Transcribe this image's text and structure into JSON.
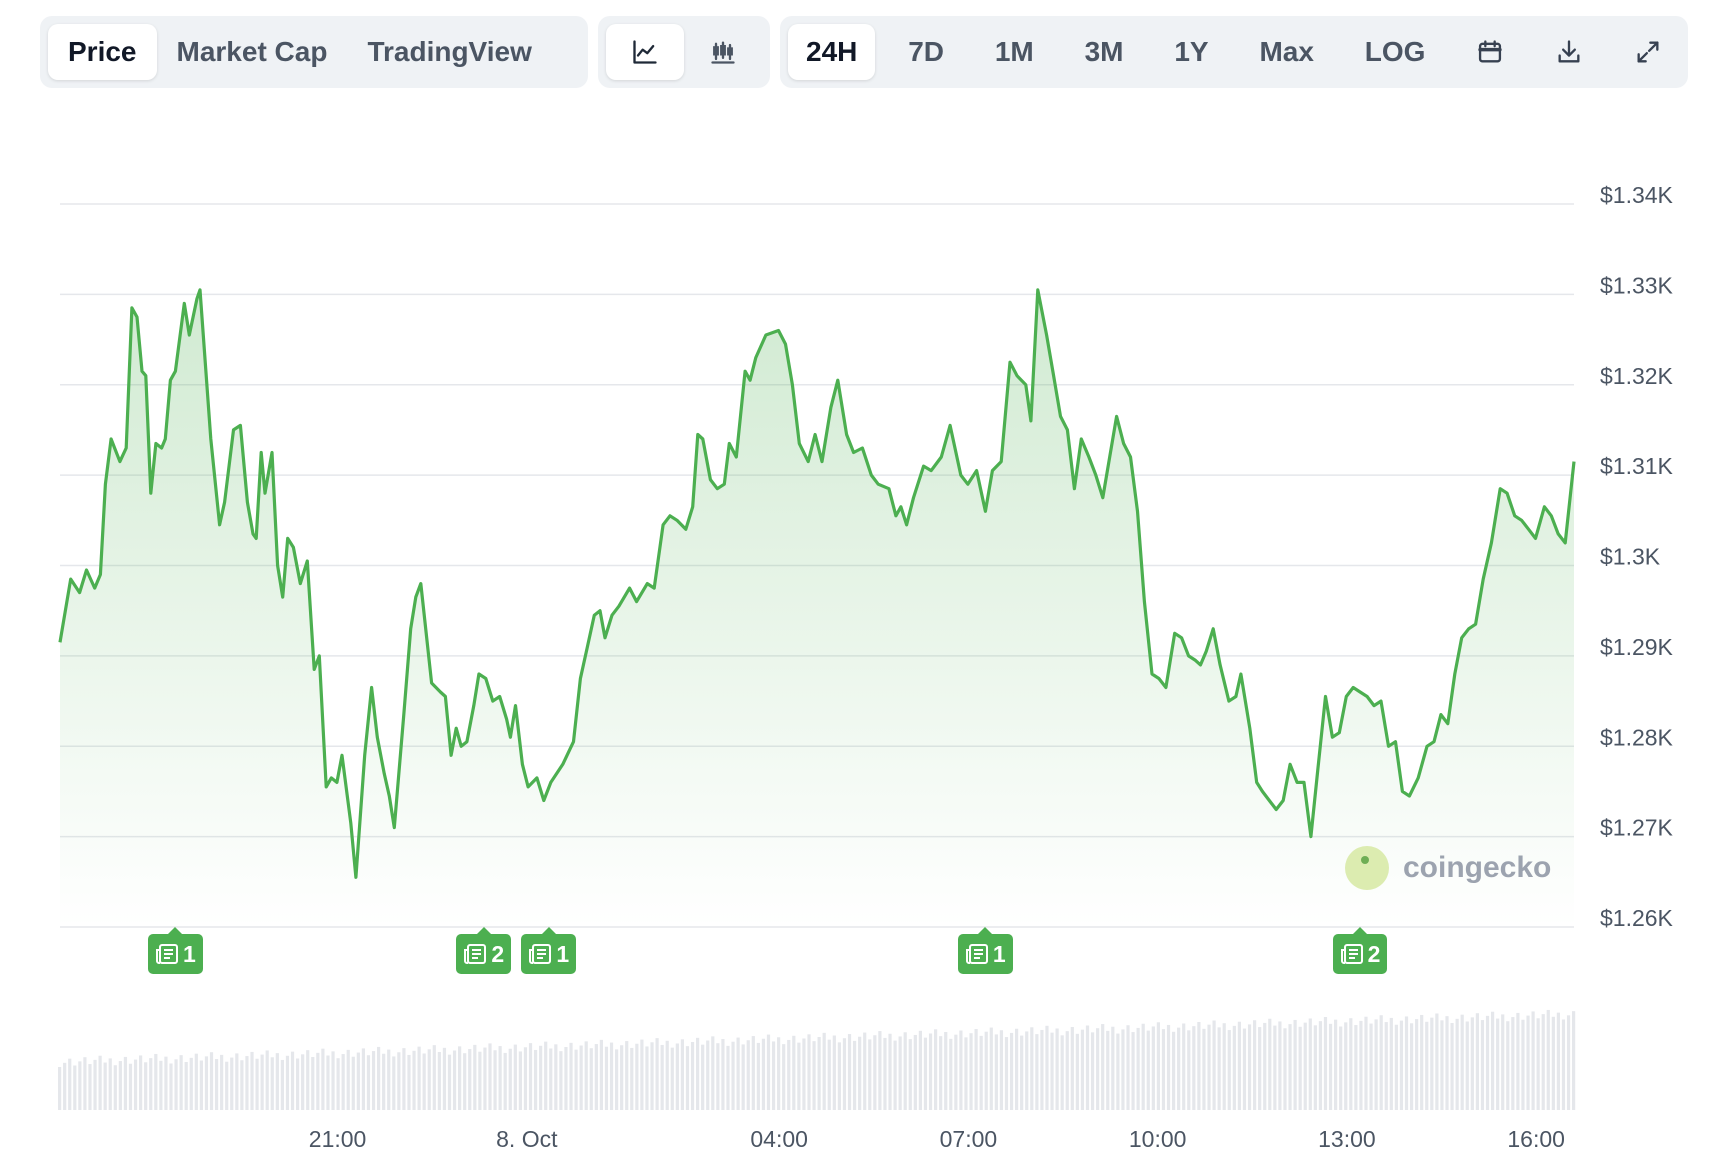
{
  "toolbar": {
    "data_tabs": [
      "Price",
      "Market Cap",
      "TradingView"
    ],
    "active_data_tab": "Price",
    "chart_types": [
      {
        "name": "line-chart-icon",
        "active": true
      },
      {
        "name": "candlestick-chart-icon",
        "active": false
      }
    ],
    "ranges": [
      "24H",
      "7D",
      "1M",
      "3M",
      "1Y",
      "Max",
      "LOG"
    ],
    "active_range": "24H",
    "actions": [
      "calendar-icon",
      "download-icon",
      "fullscreen-icon"
    ]
  },
  "watermark": "coingecko",
  "colors": {
    "line": "#4caf50",
    "area_top": "#4caf50",
    "news_badge": "#4caf50",
    "volume": "#e5e7eb",
    "grid": "#e5e7eb"
  },
  "chart_data": {
    "type": "area",
    "title": "",
    "xlabel": "",
    "ylabel": "",
    "y_unit": "USD",
    "ylim": [
      1256,
      1341
    ],
    "yticks": [
      1260,
      1270,
      1280,
      1290,
      1300,
      1310,
      1320,
      1330,
      1340
    ],
    "ytick_labels": [
      "$1.26K",
      "$1.27K",
      "$1.28K",
      "$1.29K",
      "$1.3K",
      "$1.31K",
      "$1.32K",
      "$1.33K",
      "$1.34K"
    ],
    "x_range_hours": [
      0,
      24
    ],
    "xticks": [
      {
        "label": "21:00",
        "hour": 4.4
      },
      {
        "label": "8. Oct",
        "hour": 7.4
      },
      {
        "label": "04:00",
        "hour": 11.4
      },
      {
        "label": "07:00",
        "hour": 14.4
      },
      {
        "label": "10:00",
        "hour": 17.4
      },
      {
        "label": "13:00",
        "hour": 20.4
      },
      {
        "label": "16:00",
        "hour": 23.4
      }
    ],
    "grid": true,
    "legend": "none",
    "price_points": [
      [
        0.0,
        1291.5
      ],
      [
        0.17,
        1298.5
      ],
      [
        0.31,
        1297.0
      ],
      [
        0.42,
        1299.5
      ],
      [
        0.55,
        1297.5
      ],
      [
        0.64,
        1299.0
      ],
      [
        0.72,
        1309.0
      ],
      [
        0.81,
        1314.0
      ],
      [
        0.95,
        1311.5
      ],
      [
        1.05,
        1313.0
      ],
      [
        1.14,
        1328.5
      ],
      [
        1.22,
        1327.5
      ],
      [
        1.3,
        1321.5
      ],
      [
        1.36,
        1321.0
      ],
      [
        1.44,
        1308.0
      ],
      [
        1.52,
        1313.5
      ],
      [
        1.61,
        1313.0
      ],
      [
        1.67,
        1314.0
      ],
      [
        1.75,
        1320.5
      ],
      [
        1.83,
        1321.5
      ],
      [
        1.97,
        1329.0
      ],
      [
        2.05,
        1325.5
      ],
      [
        2.17,
        1329.5
      ],
      [
        2.22,
        1330.5
      ],
      [
        2.39,
        1314.0
      ],
      [
        2.53,
        1304.5
      ],
      [
        2.61,
        1307.0
      ],
      [
        2.75,
        1315.0
      ],
      [
        2.86,
        1315.5
      ],
      [
        2.97,
        1307.0
      ],
      [
        3.06,
        1303.5
      ],
      [
        3.11,
        1303.0
      ],
      [
        3.19,
        1312.5
      ],
      [
        3.25,
        1308.0
      ],
      [
        3.36,
        1312.5
      ],
      [
        3.45,
        1300.0
      ],
      [
        3.53,
        1296.5
      ],
      [
        3.61,
        1303.0
      ],
      [
        3.7,
        1302.0
      ],
      [
        3.81,
        1298.0
      ],
      [
        3.92,
        1300.5
      ],
      [
        4.03,
        1288.5
      ],
      [
        4.11,
        1290.0
      ],
      [
        4.22,
        1275.5
      ],
      [
        4.3,
        1276.5
      ],
      [
        4.39,
        1276.0
      ],
      [
        4.47,
        1279.0
      ],
      [
        4.61,
        1271.5
      ],
      [
        4.69,
        1265.5
      ],
      [
        4.83,
        1279.0
      ],
      [
        4.94,
        1286.5
      ],
      [
        5.03,
        1281.0
      ],
      [
        5.14,
        1277.0
      ],
      [
        5.22,
        1274.5
      ],
      [
        5.3,
        1271.0
      ],
      [
        5.45,
        1283.5
      ],
      [
        5.56,
        1293.0
      ],
      [
        5.64,
        1296.5
      ],
      [
        5.72,
        1298.0
      ],
      [
        5.89,
        1287.0
      ],
      [
        6.03,
        1286.0
      ],
      [
        6.11,
        1285.5
      ],
      [
        6.2,
        1279.0
      ],
      [
        6.28,
        1282.0
      ],
      [
        6.36,
        1280.0
      ],
      [
        6.45,
        1280.5
      ],
      [
        6.56,
        1284.5
      ],
      [
        6.64,
        1288.0
      ],
      [
        6.75,
        1287.5
      ],
      [
        6.86,
        1285.0
      ],
      [
        6.97,
        1285.5
      ],
      [
        7.08,
        1283.0
      ],
      [
        7.14,
        1281.0
      ],
      [
        7.22,
        1284.5
      ],
      [
        7.33,
        1278.0
      ],
      [
        7.42,
        1275.5
      ],
      [
        7.56,
        1276.5
      ],
      [
        7.67,
        1274.0
      ],
      [
        7.78,
        1276.0
      ],
      [
        7.97,
        1278.0
      ],
      [
        8.14,
        1280.5
      ],
      [
        8.25,
        1287.5
      ],
      [
        8.36,
        1291.0
      ],
      [
        8.47,
        1294.5
      ],
      [
        8.56,
        1295.0
      ],
      [
        8.64,
        1292.0
      ],
      [
        8.75,
        1294.5
      ],
      [
        8.86,
        1295.5
      ],
      [
        9.03,
        1297.5
      ],
      [
        9.14,
        1296.0
      ],
      [
        9.31,
        1298.0
      ],
      [
        9.42,
        1297.5
      ],
      [
        9.56,
        1304.5
      ],
      [
        9.67,
        1305.5
      ],
      [
        9.78,
        1305.0
      ],
      [
        9.92,
        1304.0
      ],
      [
        10.03,
        1306.5
      ],
      [
        10.11,
        1314.5
      ],
      [
        10.19,
        1314.0
      ],
      [
        10.31,
        1309.5
      ],
      [
        10.42,
        1308.5
      ],
      [
        10.53,
        1309.0
      ],
      [
        10.61,
        1313.5
      ],
      [
        10.72,
        1312.0
      ],
      [
        10.86,
        1321.5
      ],
      [
        10.94,
        1320.5
      ],
      [
        11.03,
        1323.0
      ],
      [
        11.19,
        1325.5
      ],
      [
        11.39,
        1326.0
      ],
      [
        11.5,
        1324.5
      ],
      [
        11.61,
        1320.0
      ],
      [
        11.72,
        1313.5
      ],
      [
        11.86,
        1311.5
      ],
      [
        11.97,
        1314.5
      ],
      [
        12.08,
        1311.5
      ],
      [
        12.22,
        1317.5
      ],
      [
        12.33,
        1320.5
      ],
      [
        12.47,
        1314.5
      ],
      [
        12.58,
        1312.5
      ],
      [
        12.72,
        1313.0
      ],
      [
        12.86,
        1310.0
      ],
      [
        12.97,
        1309.0
      ],
      [
        13.14,
        1308.5
      ],
      [
        13.25,
        1305.5
      ],
      [
        13.33,
        1306.5
      ],
      [
        13.42,
        1304.5
      ],
      [
        13.53,
        1307.5
      ],
      [
        13.69,
        1311.0
      ],
      [
        13.81,
        1310.5
      ],
      [
        13.97,
        1312.0
      ],
      [
        14.11,
        1315.5
      ],
      [
        14.28,
        1310.0
      ],
      [
        14.39,
        1309.0
      ],
      [
        14.53,
        1310.5
      ],
      [
        14.67,
        1306.0
      ],
      [
        14.78,
        1310.5
      ],
      [
        14.92,
        1311.5
      ],
      [
        15.06,
        1322.5
      ],
      [
        15.17,
        1321.0
      ],
      [
        15.31,
        1320.0
      ],
      [
        15.39,
        1316.0
      ],
      [
        15.5,
        1330.5
      ],
      [
        15.64,
        1325.5
      ],
      [
        15.75,
        1321.0
      ],
      [
        15.86,
        1316.5
      ],
      [
        15.97,
        1315.0
      ],
      [
        16.08,
        1308.5
      ],
      [
        16.19,
        1314.0
      ],
      [
        16.31,
        1312.0
      ],
      [
        16.42,
        1310.0
      ],
      [
        16.53,
        1307.5
      ],
      [
        16.64,
        1312.0
      ],
      [
        16.75,
        1316.5
      ],
      [
        16.86,
        1313.5
      ],
      [
        16.97,
        1312.0
      ],
      [
        17.08,
        1306.0
      ],
      [
        17.19,
        1296.0
      ],
      [
        17.31,
        1288.0
      ],
      [
        17.42,
        1287.5
      ],
      [
        17.53,
        1286.5
      ],
      [
        17.67,
        1292.5
      ],
      [
        17.78,
        1292.0
      ],
      [
        17.89,
        1290.0
      ],
      [
        18.0,
        1289.5
      ],
      [
        18.08,
        1289.0
      ],
      [
        18.17,
        1290.5
      ],
      [
        18.28,
        1293.0
      ],
      [
        18.39,
        1289.0
      ],
      [
        18.53,
        1285.0
      ],
      [
        18.64,
        1285.5
      ],
      [
        18.72,
        1288.0
      ],
      [
        18.86,
        1282.0
      ],
      [
        18.97,
        1276.0
      ],
      [
        19.06,
        1275.0
      ],
      [
        19.17,
        1274.0
      ],
      [
        19.28,
        1273.0
      ],
      [
        19.39,
        1274.0
      ],
      [
        19.5,
        1278.0
      ],
      [
        19.61,
        1276.0
      ],
      [
        19.72,
        1276.0
      ],
      [
        19.83,
        1270.0
      ],
      [
        19.94,
        1277.5
      ],
      [
        20.06,
        1285.5
      ],
      [
        20.17,
        1281.0
      ],
      [
        20.28,
        1281.5
      ],
      [
        20.39,
        1285.5
      ],
      [
        20.5,
        1286.5
      ],
      [
        20.61,
        1286.0
      ],
      [
        20.72,
        1285.5
      ],
      [
        20.83,
        1284.5
      ],
      [
        20.94,
        1285.0
      ],
      [
        21.06,
        1280.0
      ],
      [
        21.17,
        1280.5
      ],
      [
        21.28,
        1275.0
      ],
      [
        21.39,
        1274.5
      ],
      [
        21.53,
        1276.5
      ],
      [
        21.67,
        1280.0
      ],
      [
        21.78,
        1280.5
      ],
      [
        21.89,
        1283.5
      ],
      [
        22.0,
        1282.5
      ],
      [
        22.11,
        1288.0
      ],
      [
        22.22,
        1292.0
      ],
      [
        22.33,
        1293.0
      ],
      [
        22.44,
        1293.5
      ],
      [
        22.56,
        1298.5
      ],
      [
        22.69,
        1302.5
      ],
      [
        22.83,
        1308.5
      ],
      [
        22.94,
        1308.0
      ],
      [
        23.06,
        1305.5
      ],
      [
        23.17,
        1305.0
      ],
      [
        23.28,
        1304.0
      ],
      [
        23.39,
        1303.0
      ],
      [
        23.53,
        1306.5
      ],
      [
        23.64,
        1305.5
      ],
      [
        23.75,
        1303.5
      ],
      [
        23.86,
        1302.5
      ],
      [
        24.0,
        1311.5
      ]
    ],
    "news_markers": [
      {
        "hour": 1.83,
        "count": "1"
      },
      {
        "hour": 6.72,
        "count": "2"
      },
      {
        "hour": 7.75,
        "count": "1"
      },
      {
        "hour": 14.67,
        "count": "1"
      },
      {
        "hour": 20.61,
        "count": "2"
      }
    ]
  }
}
